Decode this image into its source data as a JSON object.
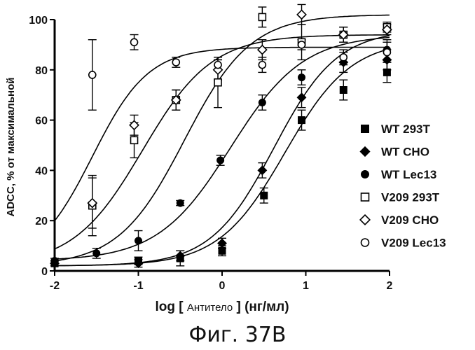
{
  "chart_data": {
    "type": "scatter",
    "caption": "Фиг. 37B",
    "xlabel": {
      "prefix": "log [ ",
      "main": "Антитело",
      "suffix": " ] (нг/мл)"
    },
    "ylabel": "ADCC, % от максимальной",
    "xlim": [
      -2,
      2
    ],
    "ylim": [
      0,
      100
    ],
    "xticks": [
      -2,
      -1,
      0,
      1,
      2
    ],
    "yticks": [
      0,
      20,
      40,
      60,
      80,
      100
    ],
    "grid": false,
    "legend_position": "right",
    "series": [
      {
        "name": "WT 293T",
        "marker": "square-filled",
        "points": [
          {
            "x": -2,
            "y": 3,
            "err": 1
          },
          {
            "x": -1,
            "y": 4,
            "err": 1.5
          },
          {
            "x": -0.5,
            "y": 5,
            "err": 3
          },
          {
            "x": 0,
            "y": 8,
            "err": 2
          },
          {
            "x": 0.5,
            "y": 30,
            "err": 3
          },
          {
            "x": 0.95,
            "y": 60,
            "err": 4
          },
          {
            "x": 1.45,
            "y": 72,
            "err": 4
          },
          {
            "x": 1.97,
            "y": 79,
            "err": 4
          }
        ],
        "fit": {
          "bottom": 2,
          "top": 92,
          "logEC50": 0.75,
          "hill": 1.1
        }
      },
      {
        "name": "WT CHO",
        "marker": "diamond-filled",
        "points": [
          {
            "x": -2,
            "y": 3,
            "err": 1
          },
          {
            "x": -1,
            "y": 3,
            "err": 1.5
          },
          {
            "x": -0.5,
            "y": 6,
            "err": 2
          },
          {
            "x": 0,
            "y": 11,
            "err": 2
          },
          {
            "x": 0.48,
            "y": 40,
            "err": 3
          },
          {
            "x": 0.95,
            "y": 69,
            "err": 4
          },
          {
            "x": 1.45,
            "y": 83,
            "err": 4
          },
          {
            "x": 1.97,
            "y": 84,
            "err": 4
          }
        ],
        "fit": {
          "bottom": 2,
          "top": 96,
          "logEC50": 0.62,
          "hill": 1.15
        }
      },
      {
        "name": "WT Lec13",
        "marker": "circle-filled",
        "points": [
          {
            "x": -2,
            "y": 4,
            "err": 1
          },
          {
            "x": -1.5,
            "y": 7,
            "err": 2
          },
          {
            "x": -1,
            "y": 12,
            "err": 4
          },
          {
            "x": -0.5,
            "y": 27,
            "err": 1
          },
          {
            "x": -0.02,
            "y": 44,
            "err": 2
          },
          {
            "x": 0.48,
            "y": 67,
            "err": 3
          },
          {
            "x": 0.95,
            "y": 77,
            "err": 3
          },
          {
            "x": 1.45,
            "y": 94,
            "err": 3
          },
          {
            "x": 1.97,
            "y": 88,
            "err": 4
          }
        ],
        "fit": {
          "bottom": 4,
          "top": 94,
          "logEC50": 0.1,
          "hill": 1.0
        }
      },
      {
        "name": "V209 293T",
        "marker": "square-open",
        "points": [
          {
            "x": -1.55,
            "y": 26,
            "err": 12
          },
          {
            "x": -1.05,
            "y": 52,
            "err": 7
          },
          {
            "x": -0.55,
            "y": 68,
            "err": 4
          },
          {
            "x": -0.05,
            "y": 75,
            "err": 10
          },
          {
            "x": 0.48,
            "y": 101,
            "err": 4
          },
          {
            "x": 0.95,
            "y": 91,
            "err": 7
          },
          {
            "x": 1.45,
            "y": 94,
            "err": 3
          },
          {
            "x": 1.97,
            "y": 97,
            "err": 2
          }
        ],
        "fit": {
          "bottom": 2,
          "top": 102,
          "logEC50": -0.45,
          "hill": 1.1
        }
      },
      {
        "name": "V209 CHO",
        "marker": "diamond-open",
        "points": [
          {
            "x": -1.55,
            "y": 27,
            "err": 10
          },
          {
            "x": -1.05,
            "y": 58,
            "err": 4
          },
          {
            "x": -0.55,
            "y": 68,
            "err": 4
          },
          {
            "x": -0.05,
            "y": 80,
            "err": 4
          },
          {
            "x": 0.48,
            "y": 88,
            "err": 4
          },
          {
            "x": 0.95,
            "y": 102,
            "err": 4
          },
          {
            "x": 1.45,
            "y": 94,
            "err": 3
          },
          {
            "x": 1.97,
            "y": 96,
            "err": 2
          }
        ],
        "fit": {
          "bottom": 2,
          "top": 94,
          "logEC50": -0.95,
          "hill": 1.05
        }
      },
      {
        "name": "V209 Lec13",
        "marker": "circle-open",
        "points": [
          {
            "x": -1.55,
            "y": 78,
            "err": 14
          },
          {
            "x": -1.05,
            "y": 91,
            "err": 3
          },
          {
            "x": -0.55,
            "y": 83,
            "err": 2
          },
          {
            "x": -0.05,
            "y": 82,
            "err": 2
          },
          {
            "x": 0.48,
            "y": 82,
            "err": 3
          },
          {
            "x": 0.95,
            "y": 90,
            "err": 2
          },
          {
            "x": 1.45,
            "y": 85,
            "err": 3
          },
          {
            "x": 1.97,
            "y": 87,
            "err": 4
          }
        ],
        "fit": {
          "bottom": 2,
          "top": 89,
          "logEC50": -1.55,
          "hill": 1.3
        }
      }
    ]
  }
}
